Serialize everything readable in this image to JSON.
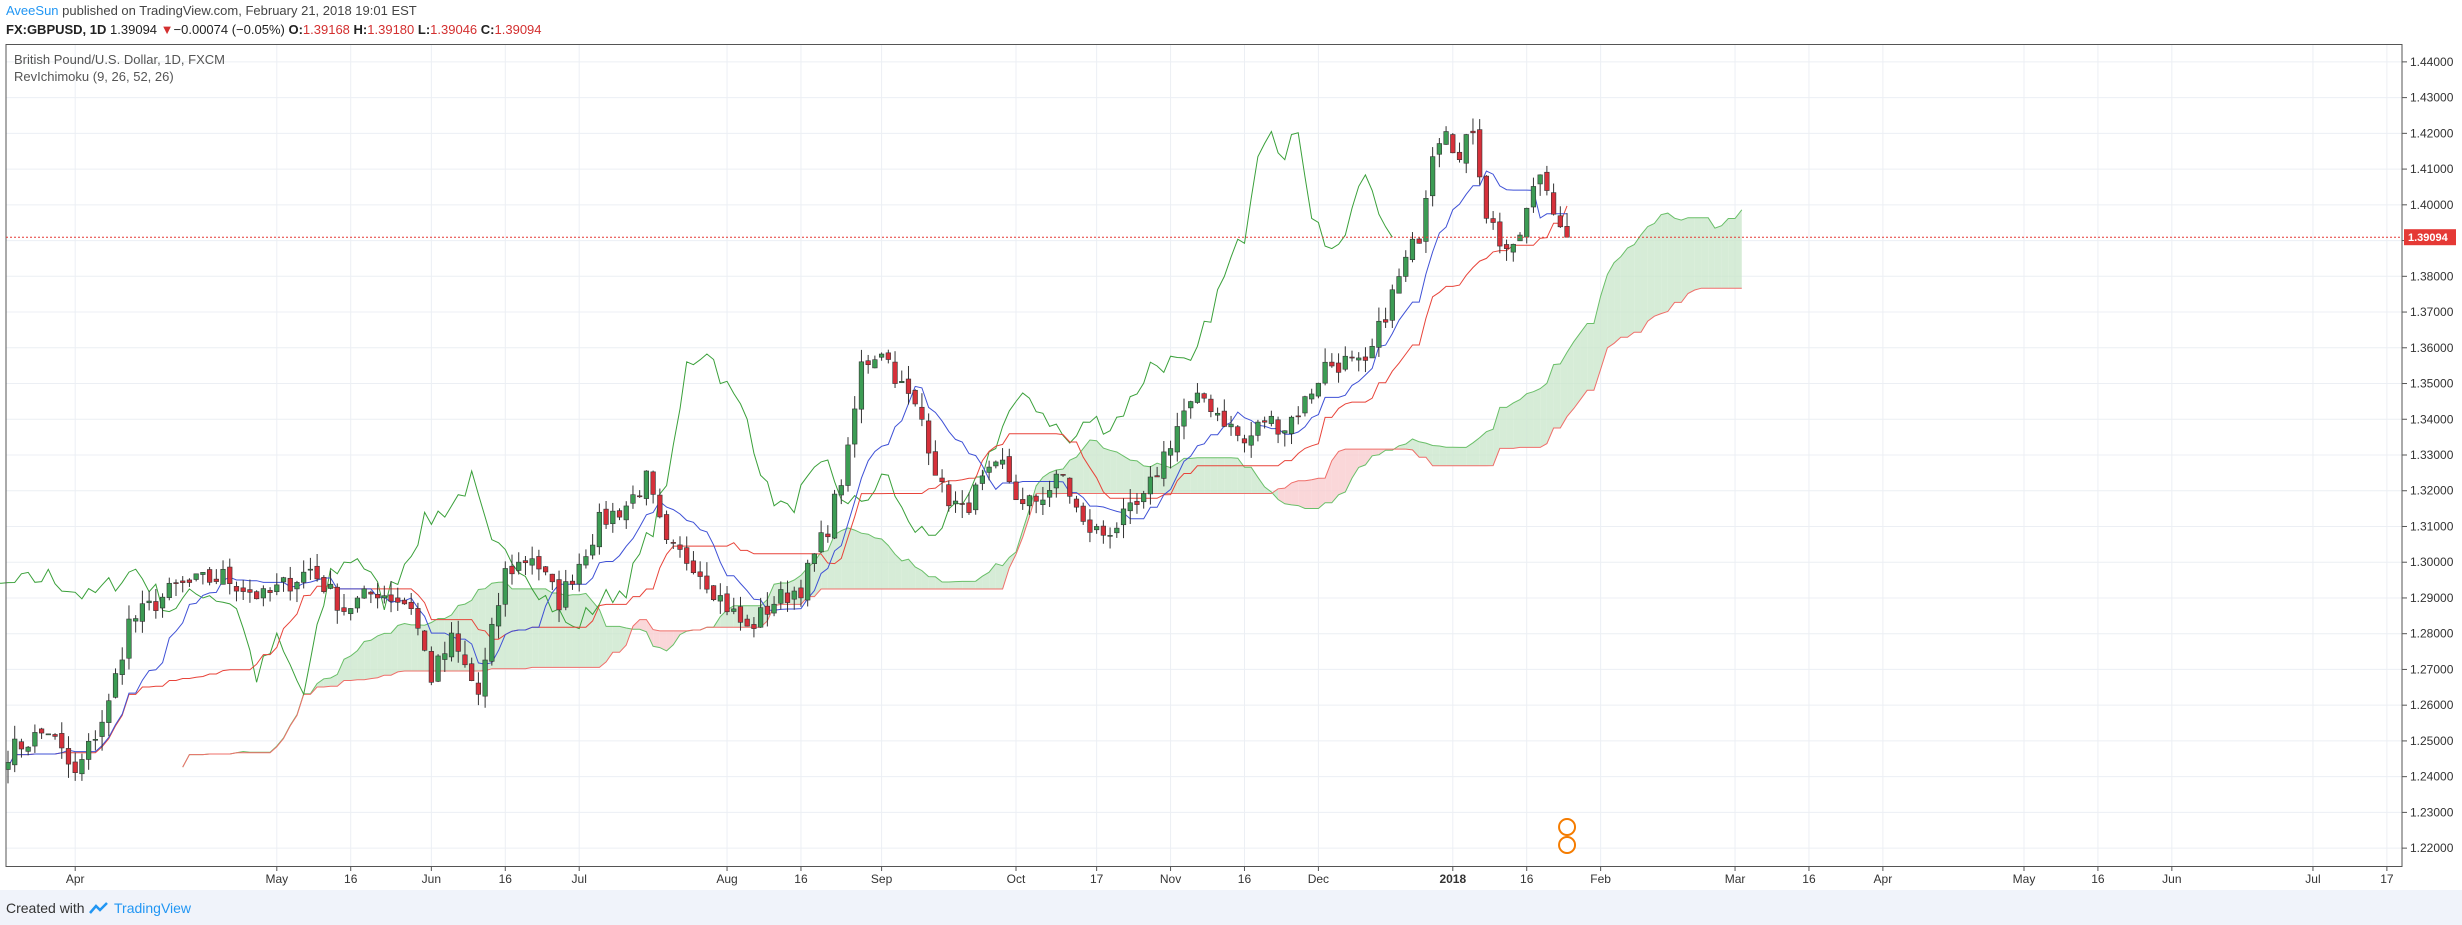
{
  "header": {
    "author": "AveeSun",
    "published": " published on TradingView.com, February 21, 2018 19:01 EST",
    "symbol": "FX:GBPUSD, 1D",
    "last": "1.39094",
    "arrow": "▼",
    "change": "−0.00074 (−0.05%)",
    "o_label": "O:",
    "o_value": "1.39168",
    "h_label": "H:",
    "h_value": "1.39180",
    "l_label": "L:",
    "l_value": "1.39046",
    "c_label": "C:",
    "c_value": "1.39094"
  },
  "legend": {
    "title": "British Pound/U.S. Dollar, 1D, FXCM",
    "indicator": "RevIchimoku (9, 26, 52, 26)"
  },
  "footer": {
    "created": "Created with",
    "brand": "TradingView"
  },
  "colors": {
    "up": "#3c9c54",
    "down": "#d6303a",
    "tenkan": "#3f51d6",
    "kijun": "#e8443a",
    "chikou": "#3aa03a",
    "cloud_bull": "#c8e6c9",
    "cloud_bear": "#f8c9cc",
    "price_line": "#e53935"
  },
  "chart_data": {
    "type": "candlestick",
    "symbol": "GBPUSD",
    "ylim": [
      1.215,
      1.445
    ],
    "y_ticks": [
      "1.22000",
      "1.23000",
      "1.24000",
      "1.25000",
      "1.26000",
      "1.27000",
      "1.28000",
      "1.29000",
      "1.30000",
      "1.31000",
      "1.32000",
      "1.33000",
      "1.34000",
      "1.35000",
      "1.36000",
      "1.37000",
      "1.38000",
      "1.39000",
      "1.40000",
      "1.41000",
      "1.42000",
      "1.43000",
      "1.44000"
    ],
    "x_ticks": [
      {
        "label": "Apr",
        "i": 10
      },
      {
        "label": "May",
        "i": 40
      },
      {
        "label": "16",
        "i": 51
      },
      {
        "label": "Jun",
        "i": 63
      },
      {
        "label": "16",
        "i": 74
      },
      {
        "label": "Jul",
        "i": 85
      },
      {
        "label": "Aug",
        "i": 107
      },
      {
        "label": "16",
        "i": 118
      },
      {
        "label": "Sep",
        "i": 130
      },
      {
        "label": "Oct",
        "i": 150
      },
      {
        "label": "17",
        "i": 162
      },
      {
        "label": "Nov",
        "i": 173
      },
      {
        "label": "16",
        "i": 184
      },
      {
        "label": "Dec",
        "i": 195
      },
      {
        "label": "2018",
        "i": 215
      },
      {
        "label": "16",
        "i": 226
      },
      {
        "label": "Feb",
        "i": 237
      },
      {
        "label": "Mar",
        "i": 257
      },
      {
        "label": "16",
        "i": 268
      },
      {
        "label": "Apr",
        "i": 279
      },
      {
        "label": "May",
        "i": 300
      },
      {
        "label": "16",
        "i": 311
      },
      {
        "label": "Jun",
        "i": 322
      },
      {
        "label": "Jul",
        "i": 343
      },
      {
        "label": "17",
        "i": 354
      }
    ],
    "last_price": "1.39094",
    "anchors": [
      {
        "i": 0,
        "c": 1.247
      },
      {
        "i": 6,
        "c": 1.253
      },
      {
        "i": 10,
        "c": 1.24
      },
      {
        "i": 15,
        "c": 1.26
      },
      {
        "i": 18,
        "c": 1.283
      },
      {
        "i": 25,
        "c": 1.293
      },
      {
        "i": 32,
        "c": 1.296
      },
      {
        "i": 38,
        "c": 1.29
      },
      {
        "i": 45,
        "c": 1.298
      },
      {
        "i": 50,
        "c": 1.287
      },
      {
        "i": 55,
        "c": 1.292
      },
      {
        "i": 60,
        "c": 1.288
      },
      {
        "i": 63,
        "c": 1.268
      },
      {
        "i": 66,
        "c": 1.278
      },
      {
        "i": 70,
        "c": 1.263
      },
      {
        "i": 74,
        "c": 1.297
      },
      {
        "i": 78,
        "c": 1.302
      },
      {
        "i": 82,
        "c": 1.289
      },
      {
        "i": 88,
        "c": 1.311
      },
      {
        "i": 92,
        "c": 1.316
      },
      {
        "i": 95,
        "c": 1.323
      },
      {
        "i": 98,
        "c": 1.304
      },
      {
        "i": 102,
        "c": 1.3
      },
      {
        "i": 106,
        "c": 1.29
      },
      {
        "i": 110,
        "c": 1.281
      },
      {
        "i": 114,
        "c": 1.289
      },
      {
        "i": 118,
        "c": 1.293
      },
      {
        "i": 122,
        "c": 1.31
      },
      {
        "i": 125,
        "c": 1.33
      },
      {
        "i": 127,
        "c": 1.355
      },
      {
        "i": 130,
        "c": 1.36
      },
      {
        "i": 133,
        "c": 1.349
      },
      {
        "i": 136,
        "c": 1.34
      },
      {
        "i": 139,
        "c": 1.32
      },
      {
        "i": 142,
        "c": 1.314
      },
      {
        "i": 145,
        "c": 1.322
      },
      {
        "i": 148,
        "c": 1.327
      },
      {
        "i": 151,
        "c": 1.315
      },
      {
        "i": 154,
        "c": 1.319
      },
      {
        "i": 157,
        "c": 1.324
      },
      {
        "i": 160,
        "c": 1.31
      },
      {
        "i": 163,
        "c": 1.308
      },
      {
        "i": 166,
        "c": 1.312
      },
      {
        "i": 169,
        "c": 1.317
      },
      {
        "i": 172,
        "c": 1.33
      },
      {
        "i": 175,
        "c": 1.342
      },
      {
        "i": 178,
        "c": 1.346
      },
      {
        "i": 181,
        "c": 1.34
      },
      {
        "i": 184,
        "c": 1.333
      },
      {
        "i": 187,
        "c": 1.34
      },
      {
        "i": 190,
        "c": 1.338
      },
      {
        "i": 193,
        "c": 1.345
      },
      {
        "i": 196,
        "c": 1.355
      },
      {
        "i": 199,
        "c": 1.356
      },
      {
        "i": 202,
        "c": 1.354
      },
      {
        "i": 205,
        "c": 1.37
      },
      {
        "i": 208,
        "c": 1.384
      },
      {
        "i": 210,
        "c": 1.392
      },
      {
        "i": 212,
        "c": 1.416
      },
      {
        "i": 214,
        "c": 1.423
      },
      {
        "i": 216,
        "c": 1.412
      },
      {
        "i": 218,
        "c": 1.422
      },
      {
        "i": 220,
        "c": 1.398
      },
      {
        "i": 222,
        "c": 1.39
      },
      {
        "i": 224,
        "c": 1.386
      },
      {
        "i": 226,
        "c": 1.398
      },
      {
        "i": 228,
        "c": 1.409
      },
      {
        "i": 230,
        "c": 1.4
      },
      {
        "i": 232,
        "c": 1.39094
      }
    ]
  }
}
